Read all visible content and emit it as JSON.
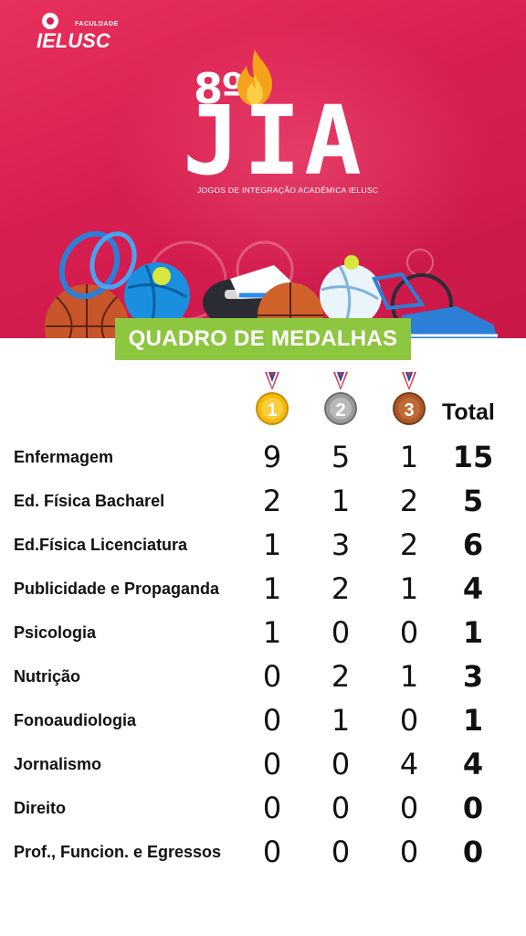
{
  "logo": {
    "small": "FACULDADE",
    "main": "IELUSC"
  },
  "event": {
    "edition": "8º",
    "title": "JIA",
    "subtitle": "JOGOS DE INTEGRAÇÃO ACADÊMICA IELUSC"
  },
  "banner": "QUADRO DE MEDALHAS",
  "colors": {
    "hero": "#d81e50",
    "banner": "#8dc63f",
    "gold": "#f2b90f",
    "silver": "#9a9a9a",
    "bronze": "#a9582a"
  },
  "medals": [
    {
      "rank": "1",
      "icon": "gold-medal-icon"
    },
    {
      "rank": "2",
      "icon": "silver-medal-icon"
    },
    {
      "rank": "3",
      "icon": "bronze-medal-icon"
    }
  ],
  "total_label": "Total",
  "rows": [
    {
      "name": "Enfermagem",
      "gold": "9",
      "silver": "5",
      "bronze": "1",
      "total": "15"
    },
    {
      "name": "Ed. Física Bacharel",
      "gold": "2",
      "silver": "1",
      "bronze": "2",
      "total": "5"
    },
    {
      "name": "Ed.Física Licenciatura",
      "gold": "1",
      "silver": "3",
      "bronze": "2",
      "total": "6"
    },
    {
      "name": "Publicidade e Propaganda",
      "gold": "1",
      "silver": "2",
      "bronze": "1",
      "total": "4"
    },
    {
      "name": "Psicologia",
      "gold": "1",
      "silver": "0",
      "bronze": "0",
      "total": "1"
    },
    {
      "name": "Nutrição",
      "gold": "0",
      "silver": "2",
      "bronze": "1",
      "total": "3"
    },
    {
      "name": "Fonoaudiologia",
      "gold": "0",
      "silver": "1",
      "bronze": "0",
      "total": "1"
    },
    {
      "name": "Jornalismo",
      "gold": "0",
      "silver": "0",
      "bronze": "4",
      "total": "4"
    },
    {
      "name": "Direito",
      "gold": "0",
      "silver": "0",
      "bronze": "0",
      "total": "0"
    },
    {
      "name": "Prof., Funcion. e Egressos",
      "gold": "0",
      "silver": "0",
      "bronze": "0",
      "total": "0"
    }
  ]
}
